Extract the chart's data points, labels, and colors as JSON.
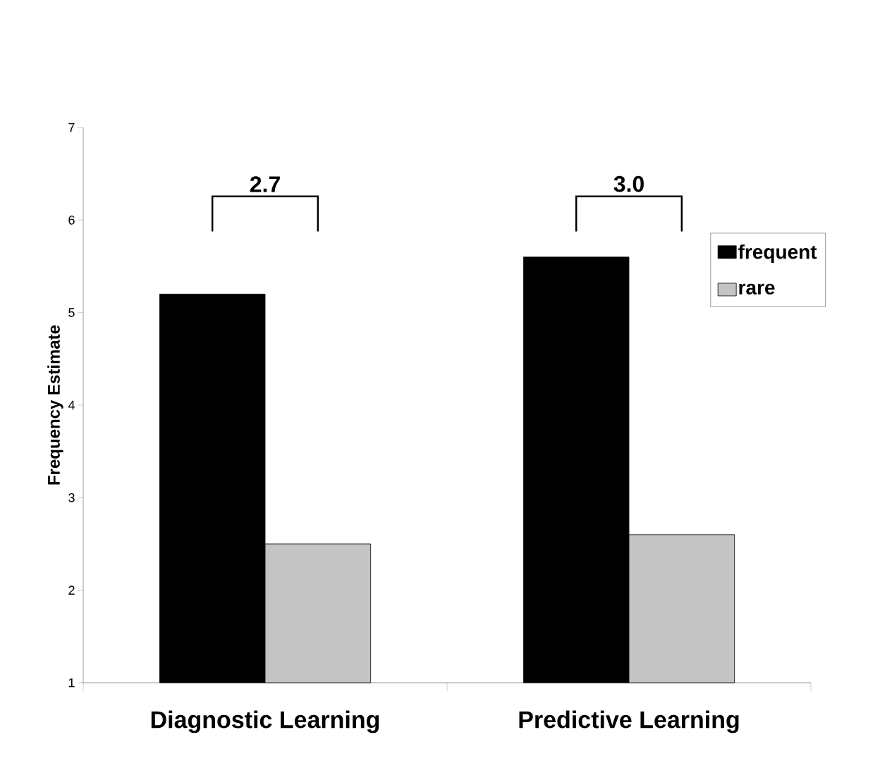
{
  "chart_data": {
    "type": "bar",
    "ylabel": "Frequency Estimate",
    "categories": [
      "Diagnostic Learning",
      "Predictive Learning"
    ],
    "series": [
      {
        "name": "frequent",
        "color": "#000000",
        "values": [
          5.2,
          5.6
        ]
      },
      {
        "name": "rare",
        "color": "#c4c4c4",
        "values": [
          2.5,
          2.6
        ]
      }
    ],
    "ylim": [
      1,
      7
    ],
    "yticks": [
      1,
      2,
      3,
      4,
      5,
      6,
      7
    ],
    "annotations": [
      "2.7",
      "3.0"
    ],
    "legend": "right",
    "grid": false
  }
}
